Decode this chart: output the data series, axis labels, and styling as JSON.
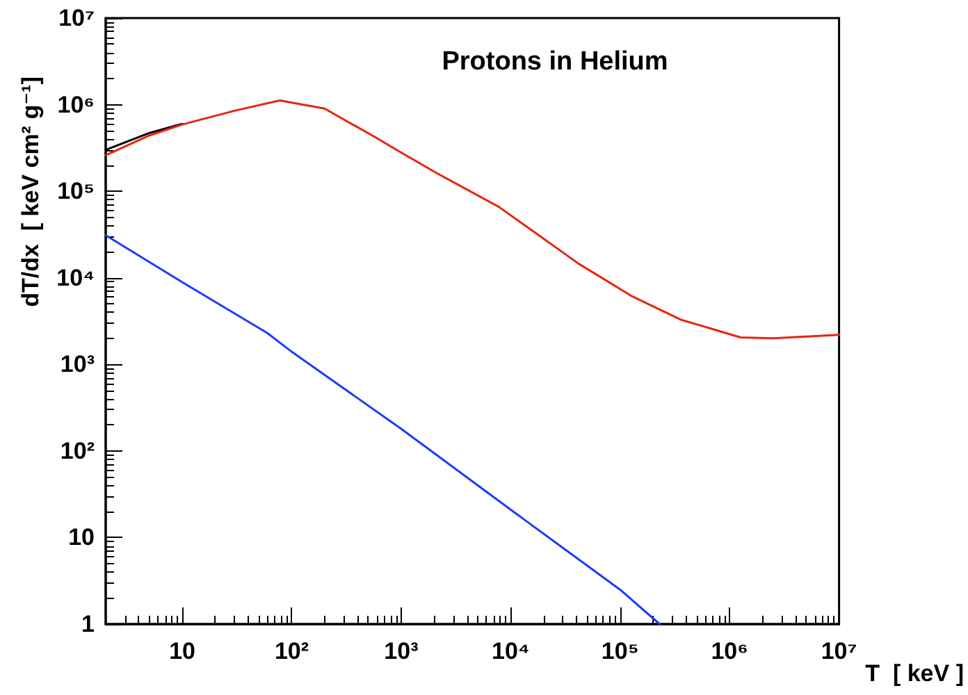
{
  "chart_data": {
    "type": "line",
    "title": "Protons in Helium",
    "xlabel": "T  [ keV ]",
    "ylabel": "dT/dx  [ keV cm² g⁻¹]",
    "log": "xy",
    "grid": false,
    "marker": "none",
    "line_style": "solid",
    "xlim": [
      2,
      10000000
    ],
    "xticks": [
      10,
      {
        "value": 100,
        "label": "10²"
      },
      {
        "value": 1000,
        "label": "10³"
      },
      {
        "value": 10000,
        "label": "10⁴"
      },
      {
        "value": 100000,
        "label": "10⁵"
      },
      {
        "value": 1000000,
        "label": "10⁶"
      },
      {
        "value": 10000000,
        "label": "10⁷"
      }
    ],
    "ylim": [
      1,
      10000000
    ],
    "yticks": [
      1,
      10,
      {
        "value": 100,
        "label": "10²"
      },
      {
        "value": 1000,
        "label": "10³"
      },
      {
        "value": 10000,
        "label": "10⁴"
      },
      {
        "value": 100000,
        "label": "10⁵"
      },
      {
        "value": 1000000,
        "label": "10⁶"
      },
      {
        "value": 10000000,
        "label": "10⁷"
      }
    ],
    "series": [
      {
        "color": "#000000",
        "x": [
          2,
          5,
          10
        ],
        "values": [
          300000,
          470000,
          600000
        ]
      },
      {
        "color": "#e8250c",
        "x": [
          2,
          5,
          10,
          30,
          78,
          200,
          600,
          1000,
          2150,
          7800,
          42000,
          126000,
          355000,
          1260000,
          2500000,
          10000000
        ],
        "values": [
          260000,
          440000,
          590000,
          850000,
          1120000,
          900000,
          410000,
          280000,
          160000,
          66000,
          14500,
          6200,
          3300,
          2050,
          2000,
          2200
        ]
      },
      {
        "color": "#1a3cff",
        "x": [
          2,
          10,
          60,
          100,
          1000,
          10000,
          100000,
          230000
        ],
        "values": [
          31000,
          8900,
          2300,
          1400,
          180,
          21,
          2.5,
          1
        ]
      }
    ]
  }
}
